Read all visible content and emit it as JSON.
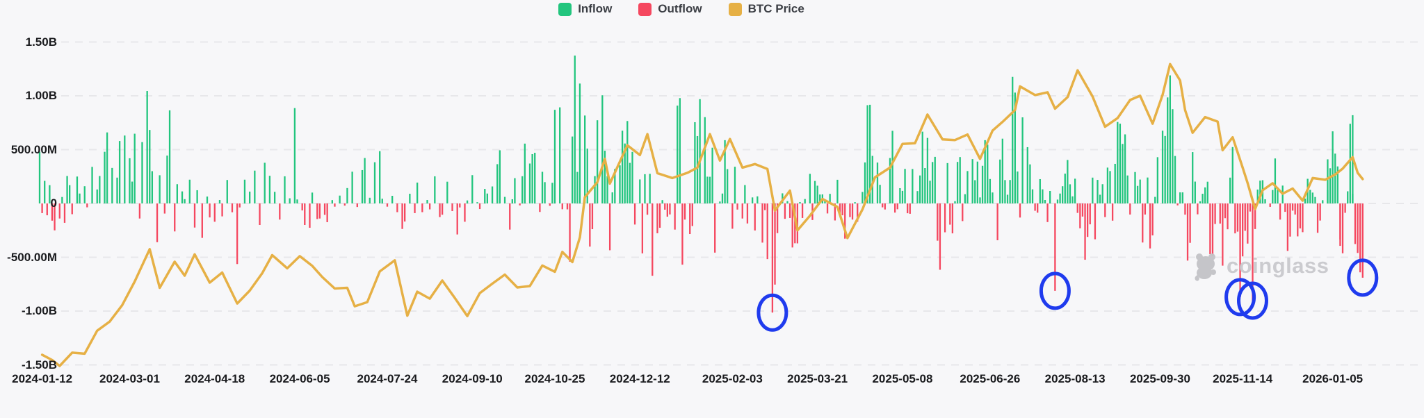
{
  "legend": {
    "items": [
      {
        "id": "inflow",
        "label": "Inflow",
        "color": "#22c57e"
      },
      {
        "id": "outflow",
        "label": "Outflow",
        "color": "#f5475f"
      },
      {
        "id": "btc-price",
        "label": "BTC Price",
        "color": "#e6b045"
      }
    ]
  },
  "watermark": {
    "text": "coinglass",
    "logo": "coinglass-bear-logo",
    "color": "#c6c6ca"
  },
  "chart_data": {
    "type": "combo: daily net flow bars (inflow/outflow) + BTC price line overlay (hidden price axis)",
    "flow_unit": "USD (left axis, B = billions, M = millions)",
    "ylim_musd": [
      -1500,
      1500
    ],
    "grid": "horizontal dashed lines",
    "legend_position": "top-center",
    "y_axis": {
      "labels": [
        "1.50B",
        "1.00B",
        "500.00M",
        "0",
        "-500.00M",
        "-1.00B",
        "-1.50B"
      ],
      "values_m": [
        1500,
        1000,
        500,
        0,
        -500,
        -1000,
        -1500
      ]
    },
    "x_axis": {
      "labels": [
        "2024-01-12",
        "2024-03-01",
        "2024-04-18",
        "2024-06-05",
        "2024-07-24",
        "2024-09-10",
        "2024-10-25",
        "2024-12-12",
        "2025-02-03",
        "2025-03-21",
        "2025-05-08",
        "2025-06-26",
        "2025-08-13",
        "2025-09-30",
        "2025-11-14",
        "2026-01-05"
      ]
    },
    "flows_monthly_musd_estimated": [
      {
        "month": "2024-01",
        "values": [
          480,
          -90,
          210,
          -110,
          170,
          -160,
          -250,
          -140,
          60,
          -180,
          255,
          170,
          -100
        ]
      },
      {
        "month": "2024-02",
        "values": [
          250,
          92,
          160,
          -36,
          340,
          130,
          255,
          480,
          660,
          330,
          240,
          580,
          631
        ]
      },
      {
        "month": "2024-03",
        "values": [
          420,
          203,
          648,
          -140,
          570,
          1045,
          683,
          300,
          -360,
          262,
          -94,
          445,
          865,
          -260,
          179
        ]
      },
      {
        "month": "2024-04",
        "values": [
          112,
          40,
          221,
          -224,
          123,
          -320,
          64,
          -130,
          -170,
          32,
          -120,
          218,
          -82
        ]
      },
      {
        "month": "2024-05",
        "values": [
          -563,
          -37,
          221,
          110,
          305,
          -200,
          378,
          257,
          108,
          -150,
          252,
          48
        ]
      },
      {
        "month": "2024-06",
        "values": [
          886,
          37,
          -65,
          -200,
          -226,
          101,
          -145,
          -140,
          -106,
          -174,
          31,
          -30,
          73
        ]
      },
      {
        "month": "2024-07",
        "values": [
          -20,
          143,
          295,
          -33,
          310,
          422,
          53,
          383,
          486,
          44,
          -30,
          71,
          -81
        ]
      },
      {
        "month": "2024-08",
        "values": [
          -237,
          -168,
          90,
          -90,
          194,
          -81,
          32,
          -55,
          252,
          -127,
          -105,
          202,
          -71
        ]
      },
      {
        "month": "2024-09",
        "values": [
          -288,
          -37,
          -170,
          28,
          263,
          12,
          -52,
          135,
          92,
          158,
          365,
          494,
          61
        ]
      },
      {
        "month": "2024-10",
        "values": [
          -243,
          39,
          235,
          -18,
          253,
          556,
          371,
          458,
          471,
          -79,
          294,
          198,
          -22,
          192,
          870,
          893,
          -54
        ]
      },
      {
        "month": "2024-11",
        "values": [
          -55,
          -541,
          622,
          1374,
          293,
          1114,
          817,
          510,
          -401,
          -239,
          254,
          773,
          1005,
          490,
          254,
          -435,
          103,
          320
        ]
      },
      {
        "month": "2024-12",
        "values": [
          354,
          676,
          557,
          766,
          377,
          479,
          -196,
          223,
          -464,
          272,
          -105,
          275,
          -672,
          -277,
          -226,
          31,
          -58,
          -123,
          -102
        ]
      },
      {
        "month": "2025-01",
        "values": [
          -243,
          909,
          979,
          -569,
          -150,
          -284,
          -210,
          755,
          626,
          969,
          802,
          249,
          248,
          518,
          -457,
          18,
          92,
          588,
          319
        ]
      },
      {
        "month": "2025-02",
        "values": [
          -235,
          341,
          -57,
          -140,
          171,
          -186,
          56,
          -251,
          66,
          -364,
          -62,
          -517,
          -1014,
          -754,
          -276
        ]
      },
      {
        "month": "2025-03",
        "values": [
          94,
          -143,
          22,
          -135,
          -409,
          -370,
          -371,
          13,
          -135,
          41,
          275,
          -154,
          209,
          165,
          83,
          84,
          27,
          -93,
          89
        ]
      },
      {
        "month": "2025-04",
        "values": [
          -158,
          220,
          -100,
          -110,
          -327,
          -127,
          -150,
          12,
          -170,
          107,
          381,
          913,
          917,
          442,
          380,
          173,
          -36,
          -56
        ]
      },
      {
        "month": "2025-05",
        "values": [
          422,
          675,
          -85,
          -54,
          142,
          117,
          321,
          -91,
          -96,
          320,
          115,
          260,
          667,
          329,
          609,
          211,
          385,
          433,
          -346,
          -616
        ]
      },
      {
        "month": "2025-06",
        "values": [
          -268,
          375,
          -197,
          -278,
          21,
          386,
          431,
          -164,
          86,
          301,
          412,
          216,
          389,
          56,
          350,
          588,
          547,
          227,
          102
        ]
      },
      {
        "month": "2025-07",
        "values": [
          -342,
          408,
          602,
          217,
          81,
          218,
          1176,
          1030,
          297,
          -131,
          800,
          523,
          363,
          131,
          -68,
          -86,
          226,
          131,
          32,
          -173,
          116
        ]
      },
      {
        "month": "2025-08",
        "values": [
          -812,
          36,
          92,
          160,
          277,
          404,
          178,
          66,
          230,
          -88,
          -231,
          -122,
          -523,
          -311,
          -194,
          240,
          -333,
          219,
          81,
          179,
          -127
        ]
      },
      {
        "month": "2025-09",
        "values": [
          333,
          301,
          -160,
          368,
          757,
          741,
          553,
          642,
          260,
          -103,
          292,
          163,
          222,
          -363,
          -103,
          241,
          -418,
          -297,
          61,
          430
        ]
      },
      {
        "month": "2025-10",
        "values": [
          676,
          627,
          985,
          1190,
          876,
          441,
          -18,
          103,
          103,
          -104,
          -531,
          -366,
          477,
          203,
          -101,
          20,
          90,
          149,
          202,
          -471,
          -488,
          -191
        ]
      },
      {
        "month": "2025-11",
        "values": [
          -187,
          -578,
          -137,
          -240,
          240,
          524,
          -278,
          -262,
          -870,
          -492,
          -254,
          -373,
          -75,
          -903,
          -238,
          129,
          212,
          216,
          39
        ]
      },
      {
        "month": "2025-12",
        "values": [
          -32,
          125,
          418,
          139,
          -150,
          166,
          -78,
          -441,
          -308,
          -67,
          -103,
          -306,
          -232,
          -267,
          45,
          229,
          126,
          101,
          60,
          -273,
          -159,
          30
        ]
      },
      {
        "month": "2026-01",
        "values": [
          125,
          410,
          327,
          670,
          463,
          344,
          -335,
          -394,
          -463,
          -87,
          113,
          740,
          820,
          90,
          -377,
          -460,
          -640,
          -690
        ]
      }
    ],
    "btc_price_usd_thousands_estimated": [
      [
        "2024-01-12",
        42.8
      ],
      [
        "2024-01-18",
        41.3
      ],
      [
        "2024-01-23",
        39.6
      ],
      [
        "2024-01-30",
        43.4
      ],
      [
        "2024-02-06",
        43.1
      ],
      [
        "2024-02-13",
        49.7
      ],
      [
        "2024-02-20",
        52.3
      ],
      [
        "2024-02-27",
        57.0
      ],
      [
        "2024-03-05",
        63.8
      ],
      [
        "2024-03-13",
        73.1
      ],
      [
        "2024-03-19",
        62.0
      ],
      [
        "2024-03-27",
        69.5
      ],
      [
        "2024-04-02",
        65.5
      ],
      [
        "2024-04-08",
        71.6
      ],
      [
        "2024-04-16",
        63.5
      ],
      [
        "2024-04-23",
        66.4
      ],
      [
        "2024-05-01",
        57.5
      ],
      [
        "2024-05-08",
        61.2
      ],
      [
        "2024-05-15",
        66.2
      ],
      [
        "2024-05-21",
        71.4
      ],
      [
        "2024-05-29",
        67.6
      ],
      [
        "2024-06-05",
        71.1
      ],
      [
        "2024-06-12",
        68.3
      ],
      [
        "2024-06-18",
        65.1
      ],
      [
        "2024-06-25",
        61.8
      ],
      [
        "2024-07-02",
        62.0
      ],
      [
        "2024-07-05",
        56.7
      ],
      [
        "2024-07-12",
        57.9
      ],
      [
        "2024-07-19",
        66.7
      ],
      [
        "2024-07-29",
        69.9
      ],
      [
        "2024-08-05",
        54.0
      ],
      [
        "2024-08-09",
        60.9
      ],
      [
        "2024-08-16",
        58.9
      ],
      [
        "2024-08-23",
        64.1
      ],
      [
        "2024-08-30",
        59.1
      ],
      [
        "2024-09-06",
        53.9
      ],
      [
        "2024-09-13",
        60.5
      ],
      [
        "2024-09-20",
        63.2
      ],
      [
        "2024-09-27",
        65.8
      ],
      [
        "2024-10-04",
        62.1
      ],
      [
        "2024-10-11",
        62.5
      ],
      [
        "2024-10-18",
        68.4
      ],
      [
        "2024-10-25",
        66.6
      ],
      [
        "2024-10-30",
        72.3
      ],
      [
        "2024-11-05",
        69.4
      ],
      [
        "2024-11-08",
        76.5
      ],
      [
        "2024-11-12",
        88.0
      ],
      [
        "2024-11-19",
        92.3
      ],
      [
        "2024-11-22",
        99.0
      ],
      [
        "2024-11-26",
        91.9
      ],
      [
        "2024-12-05",
        102.9
      ],
      [
        "2024-12-12",
        100.1
      ],
      [
        "2024-12-17",
        106.1
      ],
      [
        "2024-12-23",
        94.9
      ],
      [
        "2024-12-31",
        93.5
      ],
      [
        "2025-01-08",
        95.0
      ],
      [
        "2025-01-14",
        96.5
      ],
      [
        "2025-01-21",
        106.1
      ],
      [
        "2025-01-27",
        98.5
      ],
      [
        "2025-01-31",
        104.7
      ],
      [
        "2025-02-07",
        96.5
      ],
      [
        "2025-02-14",
        97.5
      ],
      [
        "2025-02-21",
        96.1
      ],
      [
        "2025-02-26",
        84.2
      ],
      [
        "2025-03-06",
        89.9
      ],
      [
        "2025-03-11",
        78.5
      ],
      [
        "2025-03-18",
        82.7
      ],
      [
        "2025-03-25",
        87.5
      ],
      [
        "2025-04-02",
        85.2
      ],
      [
        "2025-04-08",
        76.3
      ],
      [
        "2025-04-16",
        84.5
      ],
      [
        "2025-04-23",
        93.7
      ],
      [
        "2025-05-01",
        96.5
      ],
      [
        "2025-05-08",
        103.3
      ],
      [
        "2025-05-15",
        103.5
      ],
      [
        "2025-05-22",
        111.7
      ],
      [
        "2025-05-30",
        104.6
      ],
      [
        "2025-06-06",
        104.4
      ],
      [
        "2025-06-13",
        106.0
      ],
      [
        "2025-06-22",
        99.0
      ],
      [
        "2025-06-27",
        107.1
      ],
      [
        "2025-07-03",
        109.6
      ],
      [
        "2025-07-10",
        113.0
      ],
      [
        "2025-07-14",
        119.8
      ],
      [
        "2025-07-22",
        117.3
      ],
      [
        "2025-07-29",
        118.1
      ],
      [
        "2025-08-01",
        113.4
      ],
      [
        "2025-08-08",
        116.7
      ],
      [
        "2025-08-14",
        124.4
      ],
      [
        "2025-08-22",
        116.9
      ],
      [
        "2025-08-29",
        108.2
      ],
      [
        "2025-09-05",
        110.7
      ],
      [
        "2025-09-12",
        115.9
      ],
      [
        "2025-09-18",
        117.1
      ],
      [
        "2025-09-25",
        109.1
      ],
      [
        "2025-10-01",
        117.4
      ],
      [
        "2025-10-06",
        126.2
      ],
      [
        "2025-10-10",
        121.5
      ],
      [
        "2025-10-14",
        113.0
      ],
      [
        "2025-10-17",
        106.5
      ],
      [
        "2025-10-24",
        111.0
      ],
      [
        "2025-10-31",
        109.7
      ],
      [
        "2025-11-04",
        101.5
      ],
      [
        "2025-11-10",
        105.2
      ],
      [
        "2025-11-14",
        96.5
      ],
      [
        "2025-11-18",
        92.0
      ],
      [
        "2025-11-21",
        84.6
      ],
      [
        "2025-11-26",
        90.0
      ],
      [
        "2025-12-02",
        92.0
      ],
      [
        "2025-12-08",
        89.0
      ],
      [
        "2025-12-12",
        90.5
      ],
      [
        "2025-12-18",
        87.0
      ],
      [
        "2025-12-24",
        93.5
      ],
      [
        "2025-12-31",
        93.0
      ],
      [
        "2026-01-06",
        94.5
      ],
      [
        "2026-01-09",
        96.2
      ],
      [
        "2026-01-15",
        99.5
      ],
      [
        "2026-01-19",
        95.0
      ],
      [
        "2026-01-21",
        93.2
      ]
    ],
    "highlight_circles": [
      {
        "date": "2025-02-25",
        "value_m": -1014
      },
      {
        "date": "2025-08-01",
        "value_m": -812
      },
      {
        "date": "2025-11-13",
        "value_m": -870
      },
      {
        "date": "2025-11-20",
        "value_m": -903
      },
      {
        "date": "2026-01-20",
        "value_m": -690
      }
    ],
    "highlight_color": "#1f3bee",
    "grid_color": "#e7e7ea",
    "background_color": "#f7f7f9"
  }
}
